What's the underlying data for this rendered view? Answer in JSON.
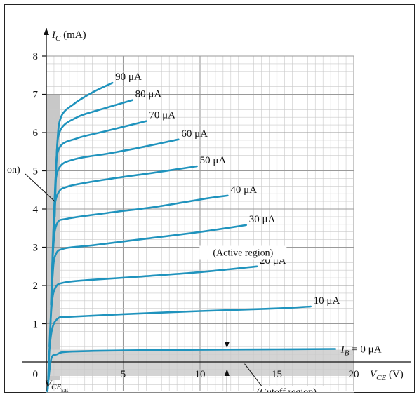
{
  "chart_data": {
    "type": "line",
    "title": "",
    "ylabel_main": "I",
    "ylabel_sub": "C",
    "ylabel_unit": "(mA)",
    "xlabel_main": "V",
    "xlabel_sub": "CE",
    "xlabel_unit": "(V)",
    "vcesat_main": "V",
    "vcesat_sub": "CE",
    "vcesat_subsub": "sat",
    "xlim": [
      0,
      20
    ],
    "ylim": [
      0,
      8
    ],
    "x_ticks": [
      "0",
      "5",
      "10",
      "15",
      "20"
    ],
    "y_ticks": [
      "1",
      "2",
      "3",
      "4",
      "5",
      "6",
      "7",
      "8"
    ],
    "grid": true,
    "annotations": {
      "active_region": "(Active region)",
      "cutoff_region": "(Cutoff region)",
      "saturation_region_partial": "on)"
    },
    "series": [
      {
        "name": "I_B = 0 μA",
        "label_main": "I",
        "label_sub": "B",
        "label_rest": " = 0 μA",
        "points": [
          [
            0.05,
            -0.9
          ],
          [
            0.3,
            0.05
          ],
          [
            0.7,
            0.2
          ],
          [
            1.5,
            0.27
          ],
          [
            5,
            0.3
          ],
          [
            10,
            0.32
          ],
          [
            15,
            0.33
          ],
          [
            18.8,
            0.34
          ]
        ]
      },
      {
        "name": "10 μA",
        "label": "10 μA",
        "points": [
          [
            0.1,
            -0.7
          ],
          [
            0.2,
            0.3
          ],
          [
            0.4,
            0.9
          ],
          [
            0.8,
            1.15
          ],
          [
            1.5,
            1.18
          ],
          [
            5,
            1.25
          ],
          [
            10,
            1.33
          ],
          [
            15,
            1.4
          ],
          [
            17.2,
            1.45
          ]
        ]
      },
      {
        "name": "20 μA",
        "label": "20 μA",
        "points": [
          [
            0.2,
            0.4
          ],
          [
            0.35,
            1.5
          ],
          [
            0.6,
            1.95
          ],
          [
            1.2,
            2.08
          ],
          [
            3,
            2.15
          ],
          [
            6,
            2.23
          ],
          [
            10,
            2.35
          ],
          [
            13.7,
            2.5
          ]
        ]
      },
      {
        "name": "30 μA",
        "label": "30 μA",
        "points": [
          [
            0.25,
            0.8
          ],
          [
            0.4,
            2.2
          ],
          [
            0.6,
            2.8
          ],
          [
            1.2,
            2.97
          ],
          [
            3,
            3.05
          ],
          [
            6,
            3.2
          ],
          [
            10,
            3.4
          ],
          [
            13,
            3.58
          ]
        ]
      },
      {
        "name": "40 μA",
        "label": "40 μA",
        "points": [
          [
            0.3,
            1.5
          ],
          [
            0.45,
            3.0
          ],
          [
            0.7,
            3.62
          ],
          [
            1.4,
            3.75
          ],
          [
            4,
            3.9
          ],
          [
            7,
            4.05
          ],
          [
            10.5,
            4.28
          ],
          [
            11.8,
            4.35
          ]
        ]
      },
      {
        "name": "50 μA",
        "label": "50 μA",
        "points": [
          [
            0.35,
            2.0
          ],
          [
            0.5,
            3.8
          ],
          [
            0.75,
            4.4
          ],
          [
            1.5,
            4.6
          ],
          [
            4,
            4.78
          ],
          [
            7,
            4.95
          ],
          [
            9.8,
            5.12
          ]
        ]
      },
      {
        "name": "60 μA",
        "label": "60 μA",
        "points": [
          [
            0.4,
            2.5
          ],
          [
            0.55,
            4.3
          ],
          [
            0.8,
            5.05
          ],
          [
            1.8,
            5.3
          ],
          [
            4,
            5.45
          ],
          [
            6,
            5.6
          ],
          [
            8.6,
            5.82
          ]
        ]
      },
      {
        "name": "70 μA",
        "label": "70 μA",
        "points": [
          [
            0.45,
            3.0
          ],
          [
            0.6,
            4.8
          ],
          [
            0.85,
            5.6
          ],
          [
            2,
            5.85
          ],
          [
            4,
            6.05
          ],
          [
            6.5,
            6.3
          ]
        ]
      },
      {
        "name": "80 μA",
        "label": "80 μA",
        "points": [
          [
            0.5,
            3.4
          ],
          [
            0.65,
            5.2
          ],
          [
            0.9,
            6.05
          ],
          [
            2,
            6.4
          ],
          [
            3.5,
            6.6
          ],
          [
            5.6,
            6.85
          ]
        ]
      },
      {
        "name": "90 μA",
        "label": "90 μA",
        "points": [
          [
            0.55,
            3.8
          ],
          [
            0.7,
            5.6
          ],
          [
            0.95,
            6.4
          ],
          [
            1.8,
            6.75
          ],
          [
            3,
            7.05
          ],
          [
            4.3,
            7.3
          ]
        ]
      }
    ]
  }
}
